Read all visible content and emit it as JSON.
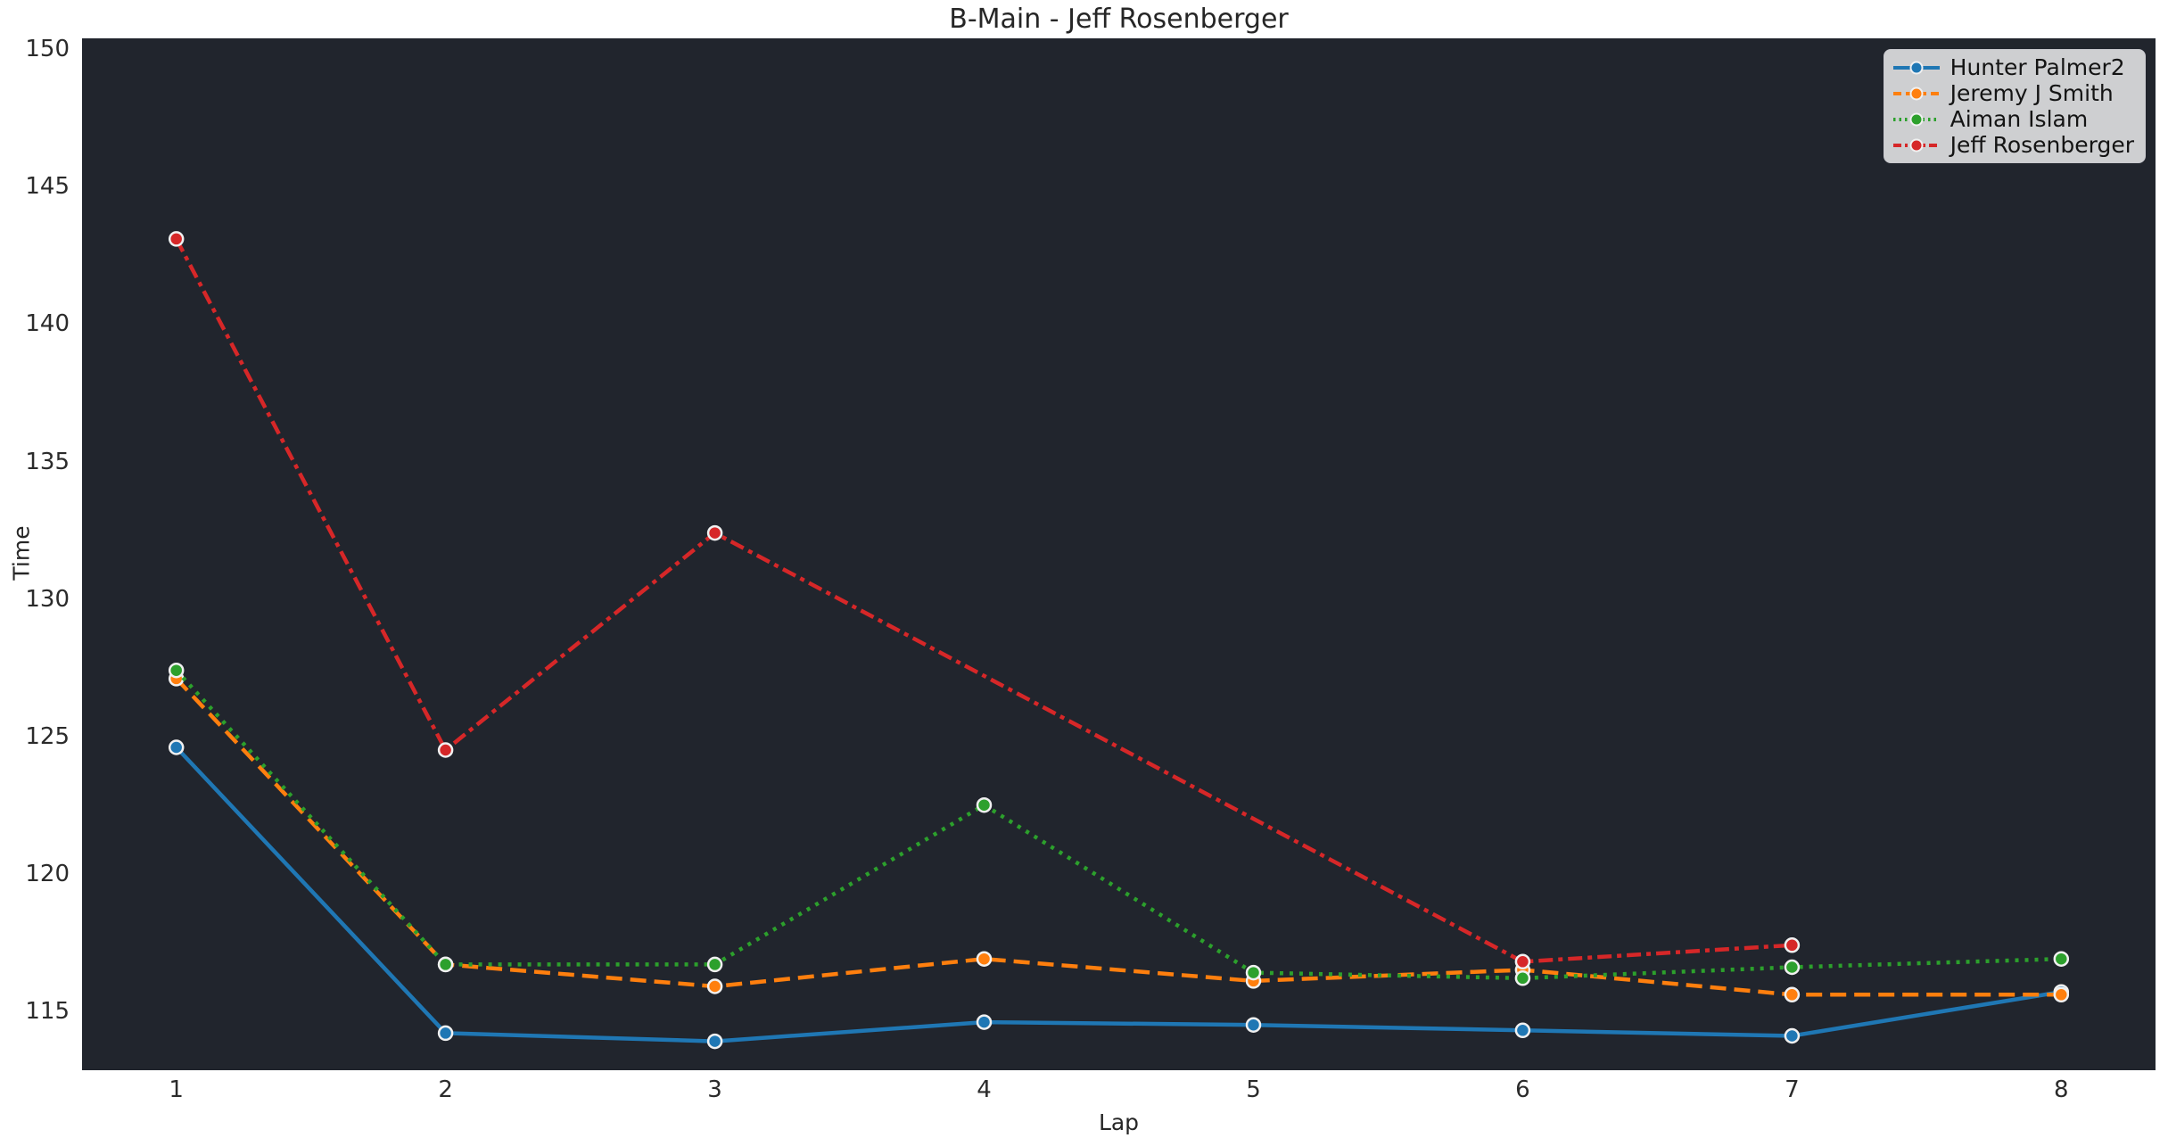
{
  "figure": {
    "background_color": "#ffffff",
    "plot_background_color": "#21252d",
    "text_color": "#262626",
    "tick_color": "#2b2b2b",
    "marker_edge_color": "#f0f0f0",
    "legend_background": "rgba(255,255,255,0.78)"
  },
  "chart_data": {
    "type": "line",
    "title": "B-Main - Jeff Rosenberger",
    "xlabel": "Lap",
    "ylabel": "Time",
    "xlim": [
      0.65,
      8.35
    ],
    "ylim": [
      112.85,
      150.4
    ],
    "xticks": [
      1,
      2,
      3,
      4,
      5,
      6,
      7,
      8
    ],
    "yticks": [
      115,
      120,
      125,
      130,
      135,
      140,
      145,
      150
    ],
    "grid": false,
    "legend_position": "upper right",
    "series": [
      {
        "name": "Hunter Palmer2",
        "color": "#1f77b4",
        "style": "solid",
        "x": [
          1,
          2,
          3,
          4,
          5,
          6,
          7,
          8
        ],
        "values": [
          124.6,
          114.2,
          113.9,
          114.6,
          114.5,
          114.3,
          114.1,
          115.7
        ]
      },
      {
        "name": "Jeremy J Smith",
        "color": "#ff7f0e",
        "style": "dashed",
        "x": [
          1,
          2,
          3,
          4,
          5,
          6,
          7,
          8
        ],
        "values": [
          127.1,
          116.7,
          115.9,
          116.9,
          116.1,
          116.5,
          115.6,
          115.6
        ]
      },
      {
        "name": "Aiman Islam",
        "color": "#2ca02c",
        "style": "dotted",
        "x": [
          1,
          2,
          3,
          4,
          5,
          6,
          7,
          8
        ],
        "values": [
          127.4,
          116.7,
          116.7,
          122.5,
          116.4,
          116.2,
          116.6,
          116.9
        ]
      },
      {
        "name": "Jeff Rosenberger",
        "color": "#d62728",
        "style": "dashdot",
        "x": [
          1,
          2,
          3,
          6,
          7
        ],
        "values": [
          143.1,
          124.5,
          132.4,
          116.8,
          117.4
        ]
      }
    ]
  }
}
